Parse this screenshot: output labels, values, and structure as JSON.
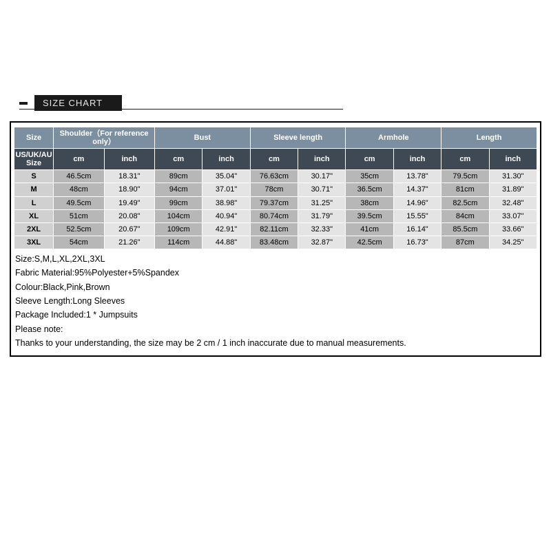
{
  "banner": {
    "label": "SIZE CHART"
  },
  "header": {
    "size": "Size",
    "groups": [
      "Shoulder（For reference only）",
      "Bust",
      "Sleeve length",
      "Armhole",
      "Length"
    ],
    "sub_size": "US/UK/AU Size",
    "cm": "cm",
    "inch": "inch"
  },
  "rows": [
    {
      "size": "S",
      "shoulder_cm": "46.5cm",
      "shoulder_in": "18.31\"",
      "bust_cm": "89cm",
      "bust_in": "35.04\"",
      "sleeve_cm": "76.63cm",
      "sleeve_in": "30.17\"",
      "arm_cm": "35cm",
      "arm_in": "13.78\"",
      "len_cm": "79.5cm",
      "len_in": "31.30\""
    },
    {
      "size": "M",
      "shoulder_cm": "48cm",
      "shoulder_in": "18.90\"",
      "bust_cm": "94cm",
      "bust_in": "37.01\"",
      "sleeve_cm": "78cm",
      "sleeve_in": "30.71\"",
      "arm_cm": "36.5cm",
      "arm_in": "14.37\"",
      "len_cm": "81cm",
      "len_in": "31.89\""
    },
    {
      "size": "L",
      "shoulder_cm": "49.5cm",
      "shoulder_in": "19.49\"",
      "bust_cm": "99cm",
      "bust_in": "38.98\"",
      "sleeve_cm": "79.37cm",
      "sleeve_in": "31.25\"",
      "arm_cm": "38cm",
      "arm_in": "14.96\"",
      "len_cm": "82.5cm",
      "len_in": "32.48\""
    },
    {
      "size": "XL",
      "shoulder_cm": "51cm",
      "shoulder_in": "20.08\"",
      "bust_cm": "104cm",
      "bust_in": "40.94\"",
      "sleeve_cm": "80.74cm",
      "sleeve_in": "31.79\"",
      "arm_cm": "39.5cm",
      "arm_in": "15.55\"",
      "len_cm": "84cm",
      "len_in": "33.07\""
    },
    {
      "size": "2XL",
      "shoulder_cm": "52.5cm",
      "shoulder_in": "20.67\"",
      "bust_cm": "109cm",
      "bust_in": "42.91\"",
      "sleeve_cm": "82.11cm",
      "sleeve_in": "32.33\"",
      "arm_cm": "41cm",
      "arm_in": "16.14\"",
      "len_cm": "85.5cm",
      "len_in": "33.66\""
    },
    {
      "size": "3XL",
      "shoulder_cm": "54cm",
      "shoulder_in": "21.26\"",
      "bust_cm": "114cm",
      "bust_in": "44.88\"",
      "sleeve_cm": "83.48cm",
      "sleeve_in": "32.87\"",
      "arm_cm": "42.5cm",
      "arm_in": "16.73\"",
      "len_cm": "87cm",
      "len_in": "34.25\""
    }
  ],
  "notes": [
    "Size:S,M,L,XL,2XL,3XL",
    "Fabric Material:95%Polyester+5%Spandex",
    "Colour:Black,Pink,Brown",
    "Sleeve Length:Long Sleeves",
    "Package Included:1 * Jumpsuits",
    "Please note:",
    "Thanks to your understanding, the size may be 2 cm / 1 inch inaccurate due to manual measurements."
  ],
  "style": {
    "header_bg": "#7b8fa0",
    "subheader_bg": "#3e4954",
    "cm_bg": "#b7b7b7",
    "in_bg": "#e4e4e4",
    "size_bg": "#d0d0d0",
    "border": "#ffffff",
    "outer_border": "#000000"
  }
}
